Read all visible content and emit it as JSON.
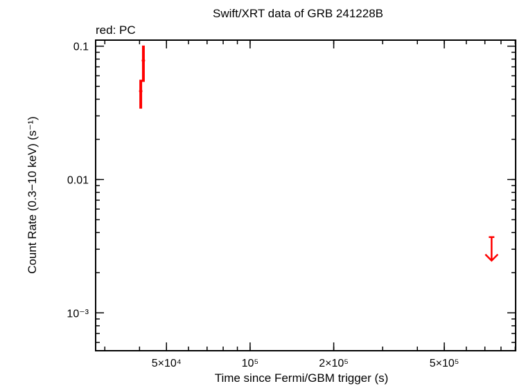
{
  "chart_data": {
    "type": "scatter",
    "title": "Swift/XRT data of GRB 241228B",
    "subtitle": "red: PC",
    "x_label": "Time since Fermi/GBM trigger (s)",
    "y_label": "Count Rate (0.3−10 keV) (s⁻¹)",
    "log_x": true,
    "log_y": true,
    "xlim": [
      27800,
      903000
    ],
    "ylim": [
      0.00052,
      0.111
    ],
    "xticks": [
      {
        "value": 50000,
        "label": "5×10⁴"
      },
      {
        "value": 100000,
        "label": "10⁵"
      },
      {
        "value": 200000,
        "label": "2×10⁵"
      },
      {
        "value": 500000,
        "label": "5×10⁵"
      }
    ],
    "yticks": [
      {
        "value": 0.001,
        "label": "10⁻³"
      },
      0.01,
      0.1
    ],
    "series": [
      {
        "color": "#ff0000",
        "x": [
          40400,
          41300
        ],
        "values": [
          0.046,
          0.078
        ],
        "yerr_minus": [
          0.012,
          0.024
        ],
        "yerr_plus": [
          0.01,
          0.023
        ]
      },
      {
        "color": "#ff0000",
        "upper_limit": true,
        "x": [
          740000
        ],
        "values": [
          0.0037
        ]
      }
    ]
  }
}
